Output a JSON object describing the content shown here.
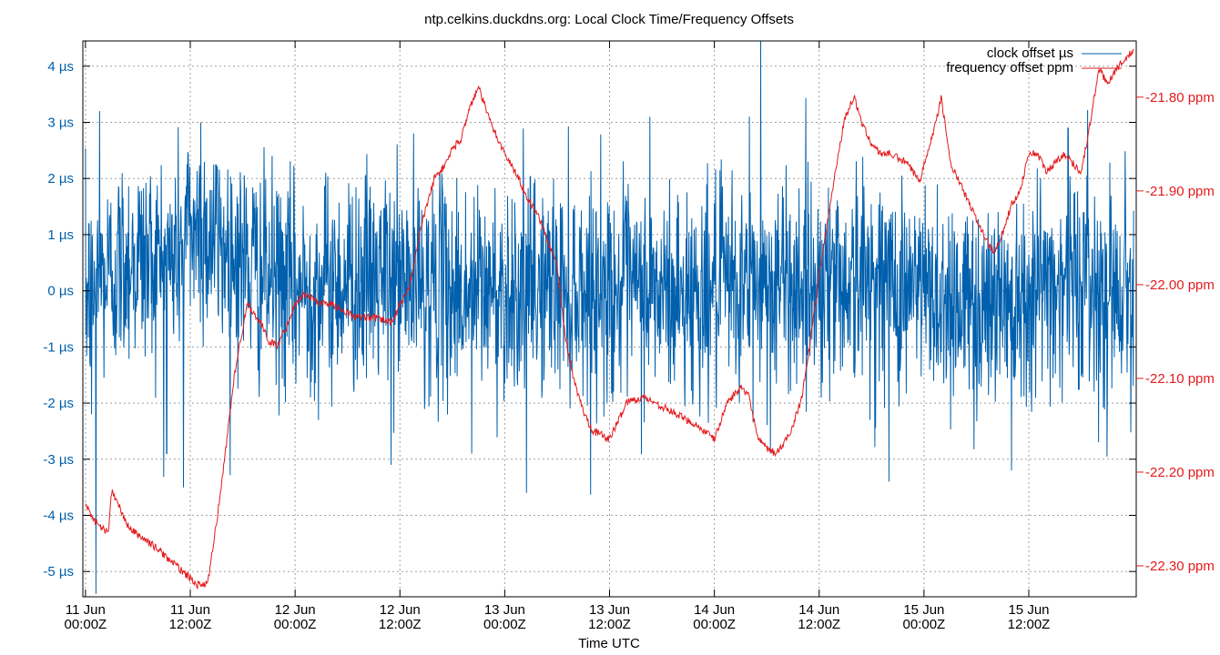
{
  "chart_data": {
    "type": "line",
    "title": "ntp.celkins.duckdns.org: Local Clock Time/Frequency Offsets",
    "xlabel": "Time UTC",
    "x_ticks": [
      {
        "date": "11 Jun",
        "time": "00:00Z",
        "hours": 0
      },
      {
        "date": "11 Jun",
        "time": "12:00Z",
        "hours": 12
      },
      {
        "date": "12 Jun",
        "time": "00:00Z",
        "hours": 24
      },
      {
        "date": "12 Jun",
        "time": "12:00Z",
        "hours": 36
      },
      {
        "date": "13 Jun",
        "time": "00:00Z",
        "hours": 48
      },
      {
        "date": "13 Jun",
        "time": "12:00Z",
        "hours": 60
      },
      {
        "date": "14 Jun",
        "time": "00:00Z",
        "hours": 72
      },
      {
        "date": "14 Jun",
        "time": "12:00Z",
        "hours": 84
      },
      {
        "date": "15 Jun",
        "time": "00:00Z",
        "hours": 96
      },
      {
        "date": "15 Jun",
        "time": "12:00Z",
        "hours": 108
      }
    ],
    "xlim_hours": [
      -0.3,
      120.3
    ],
    "y1": {
      "unit": "µs",
      "lim": [
        -5.45,
        4.45
      ],
      "ticks": [
        4,
        3,
        2,
        1,
        0,
        -1,
        -2,
        -3,
        -4,
        -5
      ],
      "tick_labels": [
        "4 µs",
        "3 µs",
        "2 µs",
        "1 µs",
        "0 µs",
        "-1 µs",
        "-2 µs",
        "-3 µs",
        "-4 µs",
        "-5 µs"
      ],
      "color": "#0060ad"
    },
    "y2": {
      "unit": "ppm",
      "lim": [
        -22.333,
        -21.74
      ],
      "ticks": [
        -21.8,
        -21.9,
        -22.0,
        -22.1,
        -22.2,
        -22.3
      ],
      "tick_labels": [
        "-21.80 ppm",
        "-21.90 ppm",
        "-22.00 ppm",
        "-22.10 ppm",
        "-22.20 ppm",
        "-22.30 ppm"
      ],
      "color": "#e41a1c"
    },
    "grid": true,
    "legend_position": "top-right",
    "series": [
      {
        "name": "clock offset µs",
        "axis": "y1",
        "color": "#0060ad",
        "noisy": true,
        "noise_sigma": 0.95,
        "x": [
          0,
          5,
          10,
          12,
          14,
          20,
          24,
          30,
          36,
          42,
          48,
          54,
          60,
          66,
          72,
          78,
          84,
          90,
          96,
          102,
          108,
          114,
          120
        ],
        "y": [
          -0.1,
          0.6,
          0.5,
          1.2,
          1.0,
          0.3,
          0.0,
          0.2,
          0.2,
          0.0,
          0.0,
          0.1,
          0.0,
          -0.1,
          0.0,
          0.1,
          0.2,
          0.2,
          0.0,
          -0.3,
          0.1,
          0.2,
          0.0
        ]
      },
      {
        "name": "frequency offset ppm",
        "axis": "y2",
        "color": "#e41a1c",
        "noisy": false,
        "x": [
          0,
          1.3,
          2.6,
          3.0,
          5,
          8,
          11,
          12.8,
          14,
          15.5,
          17,
          18.5,
          20,
          21,
          22,
          23,
          24,
          25,
          26,
          27,
          28,
          29,
          31,
          33,
          35,
          37,
          38.5,
          40,
          41,
          42,
          43,
          44,
          45,
          46.5,
          48,
          49.5,
          50.5,
          52,
          54,
          55,
          56,
          57,
          58,
          60,
          62,
          64,
          66,
          68,
          70,
          72,
          73.5,
          75,
          76,
          77,
          78,
          79,
          80,
          81,
          82,
          83,
          84,
          85,
          86,
          87,
          88,
          89,
          90,
          91,
          92,
          94,
          95.5,
          96,
          97,
          98,
          99,
          100,
          102,
          103,
          104,
          105,
          106,
          107,
          108,
          109,
          110,
          111,
          112,
          113,
          114,
          115,
          116,
          117,
          118,
          119,
          120
        ],
        "y": [
          -22.235,
          -22.255,
          -22.265,
          -22.22,
          -22.26,
          -22.28,
          -22.305,
          -22.32,
          -22.32,
          -22.22,
          -22.1,
          -22.02,
          -22.04,
          -22.06,
          -22.065,
          -22.045,
          -22.02,
          -22.01,
          -22.015,
          -22.02,
          -22.02,
          -22.025,
          -22.035,
          -22.035,
          -22.04,
          -22.005,
          -21.935,
          -21.885,
          -21.875,
          -21.855,
          -21.845,
          -21.81,
          -21.79,
          -21.83,
          -21.86,
          -21.885,
          -21.905,
          -21.93,
          -21.98,
          -22.06,
          -22.105,
          -22.135,
          -22.155,
          -22.165,
          -22.125,
          -22.12,
          -22.13,
          -22.14,
          -22.15,
          -22.165,
          -22.125,
          -22.11,
          -22.12,
          -22.165,
          -22.175,
          -22.18,
          -22.17,
          -22.15,
          -22.12,
          -22.06,
          -21.99,
          -21.93,
          -21.87,
          -21.82,
          -21.8,
          -21.83,
          -21.85,
          -21.86,
          -21.86,
          -21.87,
          -21.89,
          -21.87,
          -21.84,
          -21.8,
          -21.87,
          -21.89,
          -21.93,
          -21.95,
          -21.965,
          -21.945,
          -21.915,
          -21.9,
          -21.86,
          -21.86,
          -21.88,
          -21.87,
          -21.86,
          -21.87,
          -21.88,
          -21.83,
          -21.77,
          -21.785,
          -21.77,
          -21.76,
          -21.75
        ]
      }
    ],
    "annotations": [
      {
        "series": "clock offset µs",
        "x": 0.7,
        "y": -2.2
      },
      {
        "series": "clock offset µs",
        "x": 1.2,
        "y": -5.4
      },
      {
        "series": "clock offset µs",
        "x": 1.6,
        "y": 3.2
      },
      {
        "series": "clock offset µs",
        "x": 9.3,
        "y": -2.9
      },
      {
        "series": "clock offset µs",
        "x": 11.2,
        "y": -3.5
      },
      {
        "series": "clock offset µs",
        "x": 13.2,
        "y": 3.0
      },
      {
        "series": "clock offset µs",
        "x": 35.0,
        "y": -3.1
      },
      {
        "series": "clock offset µs",
        "x": 44.2,
        "y": -2.9
      },
      {
        "series": "clock offset µs",
        "x": 50.5,
        "y": -3.6
      },
      {
        "series": "clock offset µs",
        "x": 64.6,
        "y": 3.1
      },
      {
        "series": "clock offset µs",
        "x": 76.0,
        "y": 3.1
      },
      {
        "series": "clock offset µs",
        "x": 77.3,
        "y": 4.45
      },
      {
        "series": "clock offset µs",
        "x": 78.4,
        "y": -2.9
      },
      {
        "series": "clock offset µs",
        "x": 92.0,
        "y": -3.4
      },
      {
        "series": "clock offset µs",
        "x": 106.0,
        "y": -3.2
      },
      {
        "series": "clock offset µs",
        "x": 116.0,
        "y": -2.7
      },
      {
        "series": "clock offset µs",
        "x": 112.5,
        "y": 2.9
      }
    ]
  }
}
